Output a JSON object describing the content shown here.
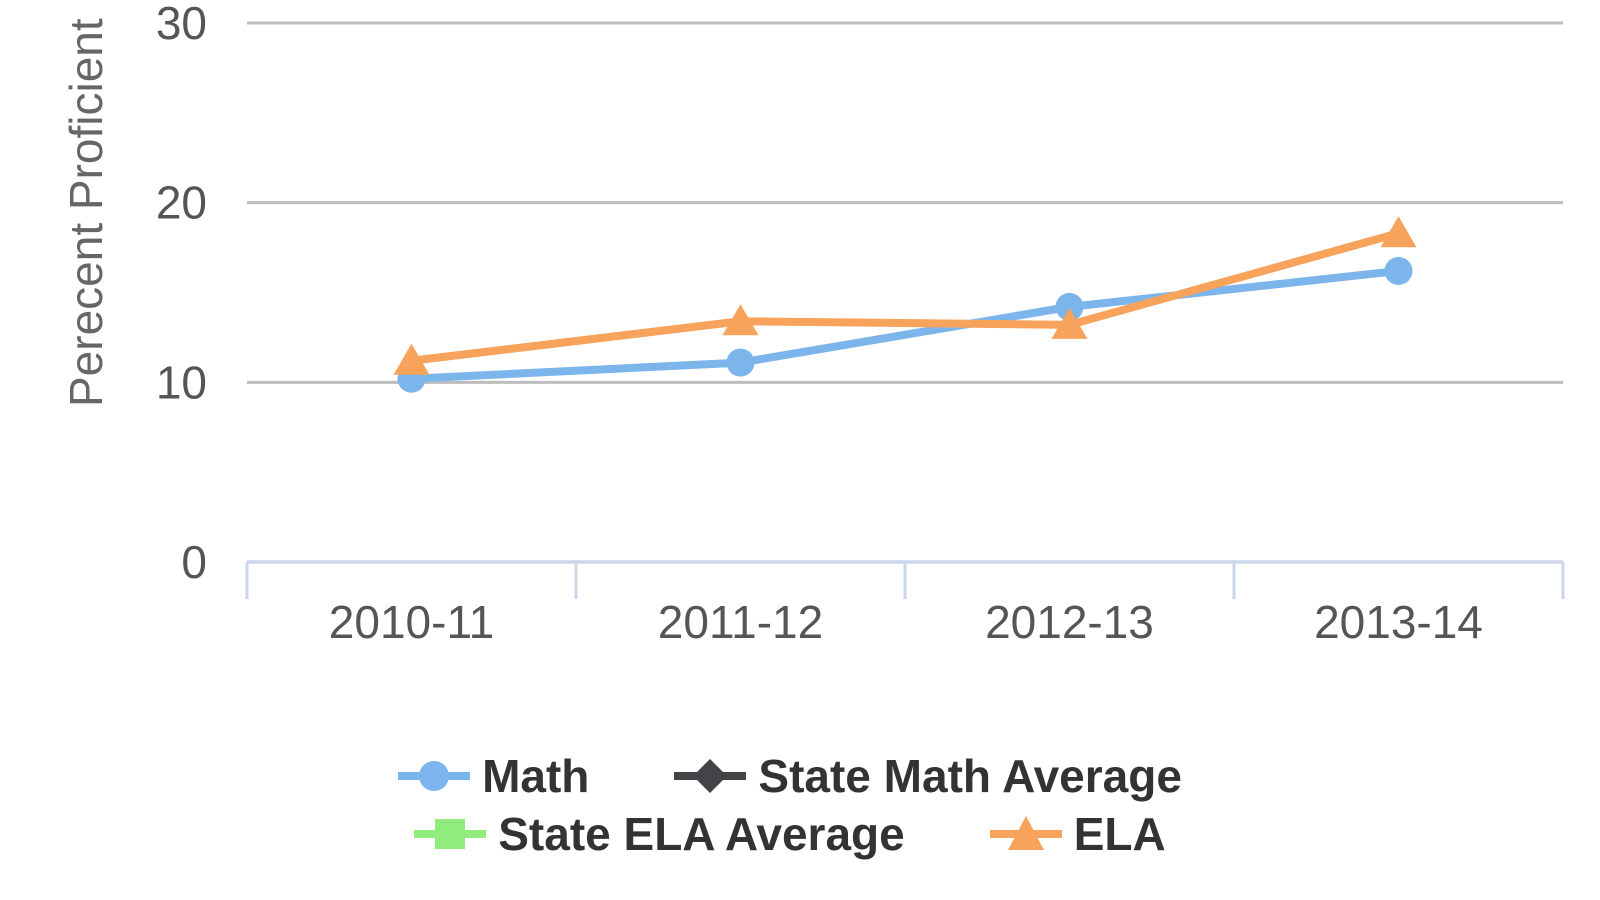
{
  "chart": {
    "y_axis_title": "Perecent Proficient",
    "y_tick_values": [
      30,
      20,
      10,
      0
    ],
    "colors": {
      "math_blue": "#7cb5ec",
      "state_math_dark": "#434348",
      "state_ela_green": "#90ed7d",
      "ela_orange": "#f7a35c",
      "grid_line": "#bdbdbd",
      "axis_line": "#ccd6eb",
      "axis_label_text": "#555555",
      "y_title_text": "#666666",
      "legend_text": "#333333"
    },
    "legend_rows": [
      [
        "Math",
        "State Math Average"
      ],
      [
        "State ELA Average",
        "ELA"
      ]
    ]
  },
  "chart_data": {
    "type": "line",
    "categories": [
      "2010-11",
      "2011-12",
      "2012-13",
      "2013-14"
    ],
    "series": [
      {
        "name": "Math",
        "color": "#7cb5ec",
        "marker": "circle",
        "values": [
          10.2,
          11.1,
          14.2,
          16.2
        ]
      },
      {
        "name": "State Math Average",
        "color": "#434348",
        "marker": "diamond",
        "values": []
      },
      {
        "name": "State ELA Average",
        "color": "#90ed7d",
        "marker": "square",
        "values": []
      },
      {
        "name": "ELA",
        "color": "#f7a35c",
        "marker": "triangle",
        "values": [
          11.2,
          13.4,
          13.2,
          18.3
        ]
      }
    ],
    "title": "",
    "xlabel": "",
    "ylabel": "Perecent Proficient",
    "ylim": [
      0,
      30
    ],
    "grid": true,
    "legend_position": "bottom"
  }
}
